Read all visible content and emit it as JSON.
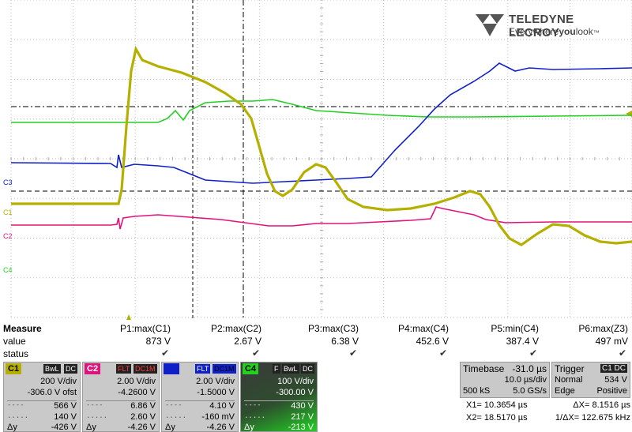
{
  "logo": {
    "brand": "TELEDYNE LECROY",
    "tagline_a": "Everywhere",
    "tagline_b": "you",
    "tagline_c": "look",
    "tm": "™"
  },
  "axis_labels": {
    "c3": "C3",
    "c1": "C1",
    "c2": "C2",
    "c4": "C4"
  },
  "colors": {
    "c1": "#b5b000",
    "c2": "#e0127e",
    "c3": "#1020c8",
    "c4": "#22d022"
  },
  "measure": {
    "header": "Measure",
    "row_value": "value",
    "row_status": "status",
    "params": [
      {
        "name": "P1:max(C1)",
        "value": "873 V"
      },
      {
        "name": "P2:max(C2)",
        "value": "2.67 V"
      },
      {
        "name": "P3:max(C3)",
        "value": "6.38 V"
      },
      {
        "name": "P4:max(C4)",
        "value": "452.6 V"
      },
      {
        "name": "P5:min(C4)",
        "value": "387.4 V"
      },
      {
        "name": "P6:max(Z3)",
        "value": "497 mV"
      }
    ]
  },
  "channels": {
    "c1": {
      "tag": "C1",
      "badges": [
        "BwL",
        "DC"
      ],
      "vdiv": "200 V/div",
      "offset": "-306.0 V ofst",
      "cur1": "566 V",
      "cur2": "140 V",
      "dy_label": "Δy",
      "dy": "-426 V"
    },
    "c2": {
      "tag": "C2",
      "badges": [
        "FLT",
        "DC1M"
      ],
      "vdiv": "2.00 V/div",
      "offset": "-4.2600 V",
      "cur1": "6.86 V",
      "cur2": "2.60 V",
      "dy_label": "Δy",
      "dy": "-4.26 V"
    },
    "c3": {
      "tag": "C3",
      "badges": [
        "FLT",
        "DC1M"
      ],
      "vdiv": "2.00 V/div",
      "offset": "-1.5000 V",
      "cur1": "4.10 V",
      "cur2": "-160 mV",
      "dy_label": "Δy",
      "dy": "-4.26 V"
    },
    "c4": {
      "tag": "C4",
      "badges": [
        "F",
        "BwL",
        "DC"
      ],
      "vdiv": "100 V/div",
      "offset": "-300.00 V",
      "cur1": "430 V",
      "cur2": "217 V",
      "dy_label": "Δy",
      "dy": "-213 V"
    }
  },
  "timebase": {
    "label": "Timebase",
    "delay": "-31.0 µs",
    "tdiv": "10.0 µs/div",
    "samples": "500 kS",
    "rate": "5.0 GS/s"
  },
  "trigger": {
    "label": "Trigger",
    "chs": "C1 DC",
    "mode": "Normal",
    "level": "534 V",
    "type": "Edge",
    "slope": "Positive"
  },
  "cursors": {
    "x1": "X1= 10.3654 µs",
    "dx": "ΔX= 8.1516 µs",
    "x2": "X2= 18.5170 µs",
    "inv_dx": "1/ΔX= 122.675 kHz"
  }
}
